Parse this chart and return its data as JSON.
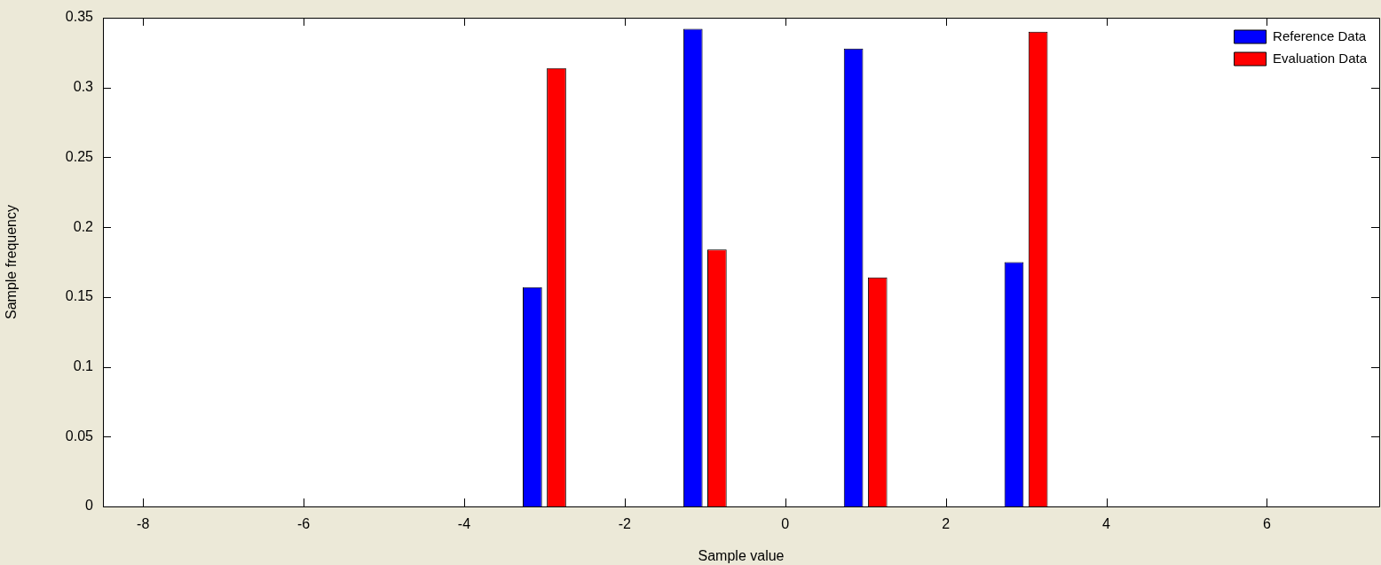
{
  "chart_data": {
    "type": "bar",
    "xlabel": "Sample value",
    "ylabel": "Sample frequency",
    "x": [
      -3,
      -1,
      1,
      3
    ],
    "series": [
      {
        "name": "Reference Data",
        "color": "#0000ff",
        "values": [
          0.157,
          0.342,
          0.328,
          0.175
        ]
      },
      {
        "name": "Evaluation Data",
        "color": "#ff0000",
        "values": [
          0.314,
          0.184,
          0.164,
          0.34
        ]
      }
    ],
    "xlim": [
      -8.5,
      7.4
    ],
    "xticks": [
      -8,
      -6,
      -4,
      -2,
      0,
      2,
      4,
      6
    ],
    "ylim": [
      0,
      0.35
    ],
    "yticks": [
      0,
      0.05,
      0.1,
      0.15,
      0.2,
      0.25,
      0.3,
      0.35
    ],
    "legend": "top right"
  }
}
